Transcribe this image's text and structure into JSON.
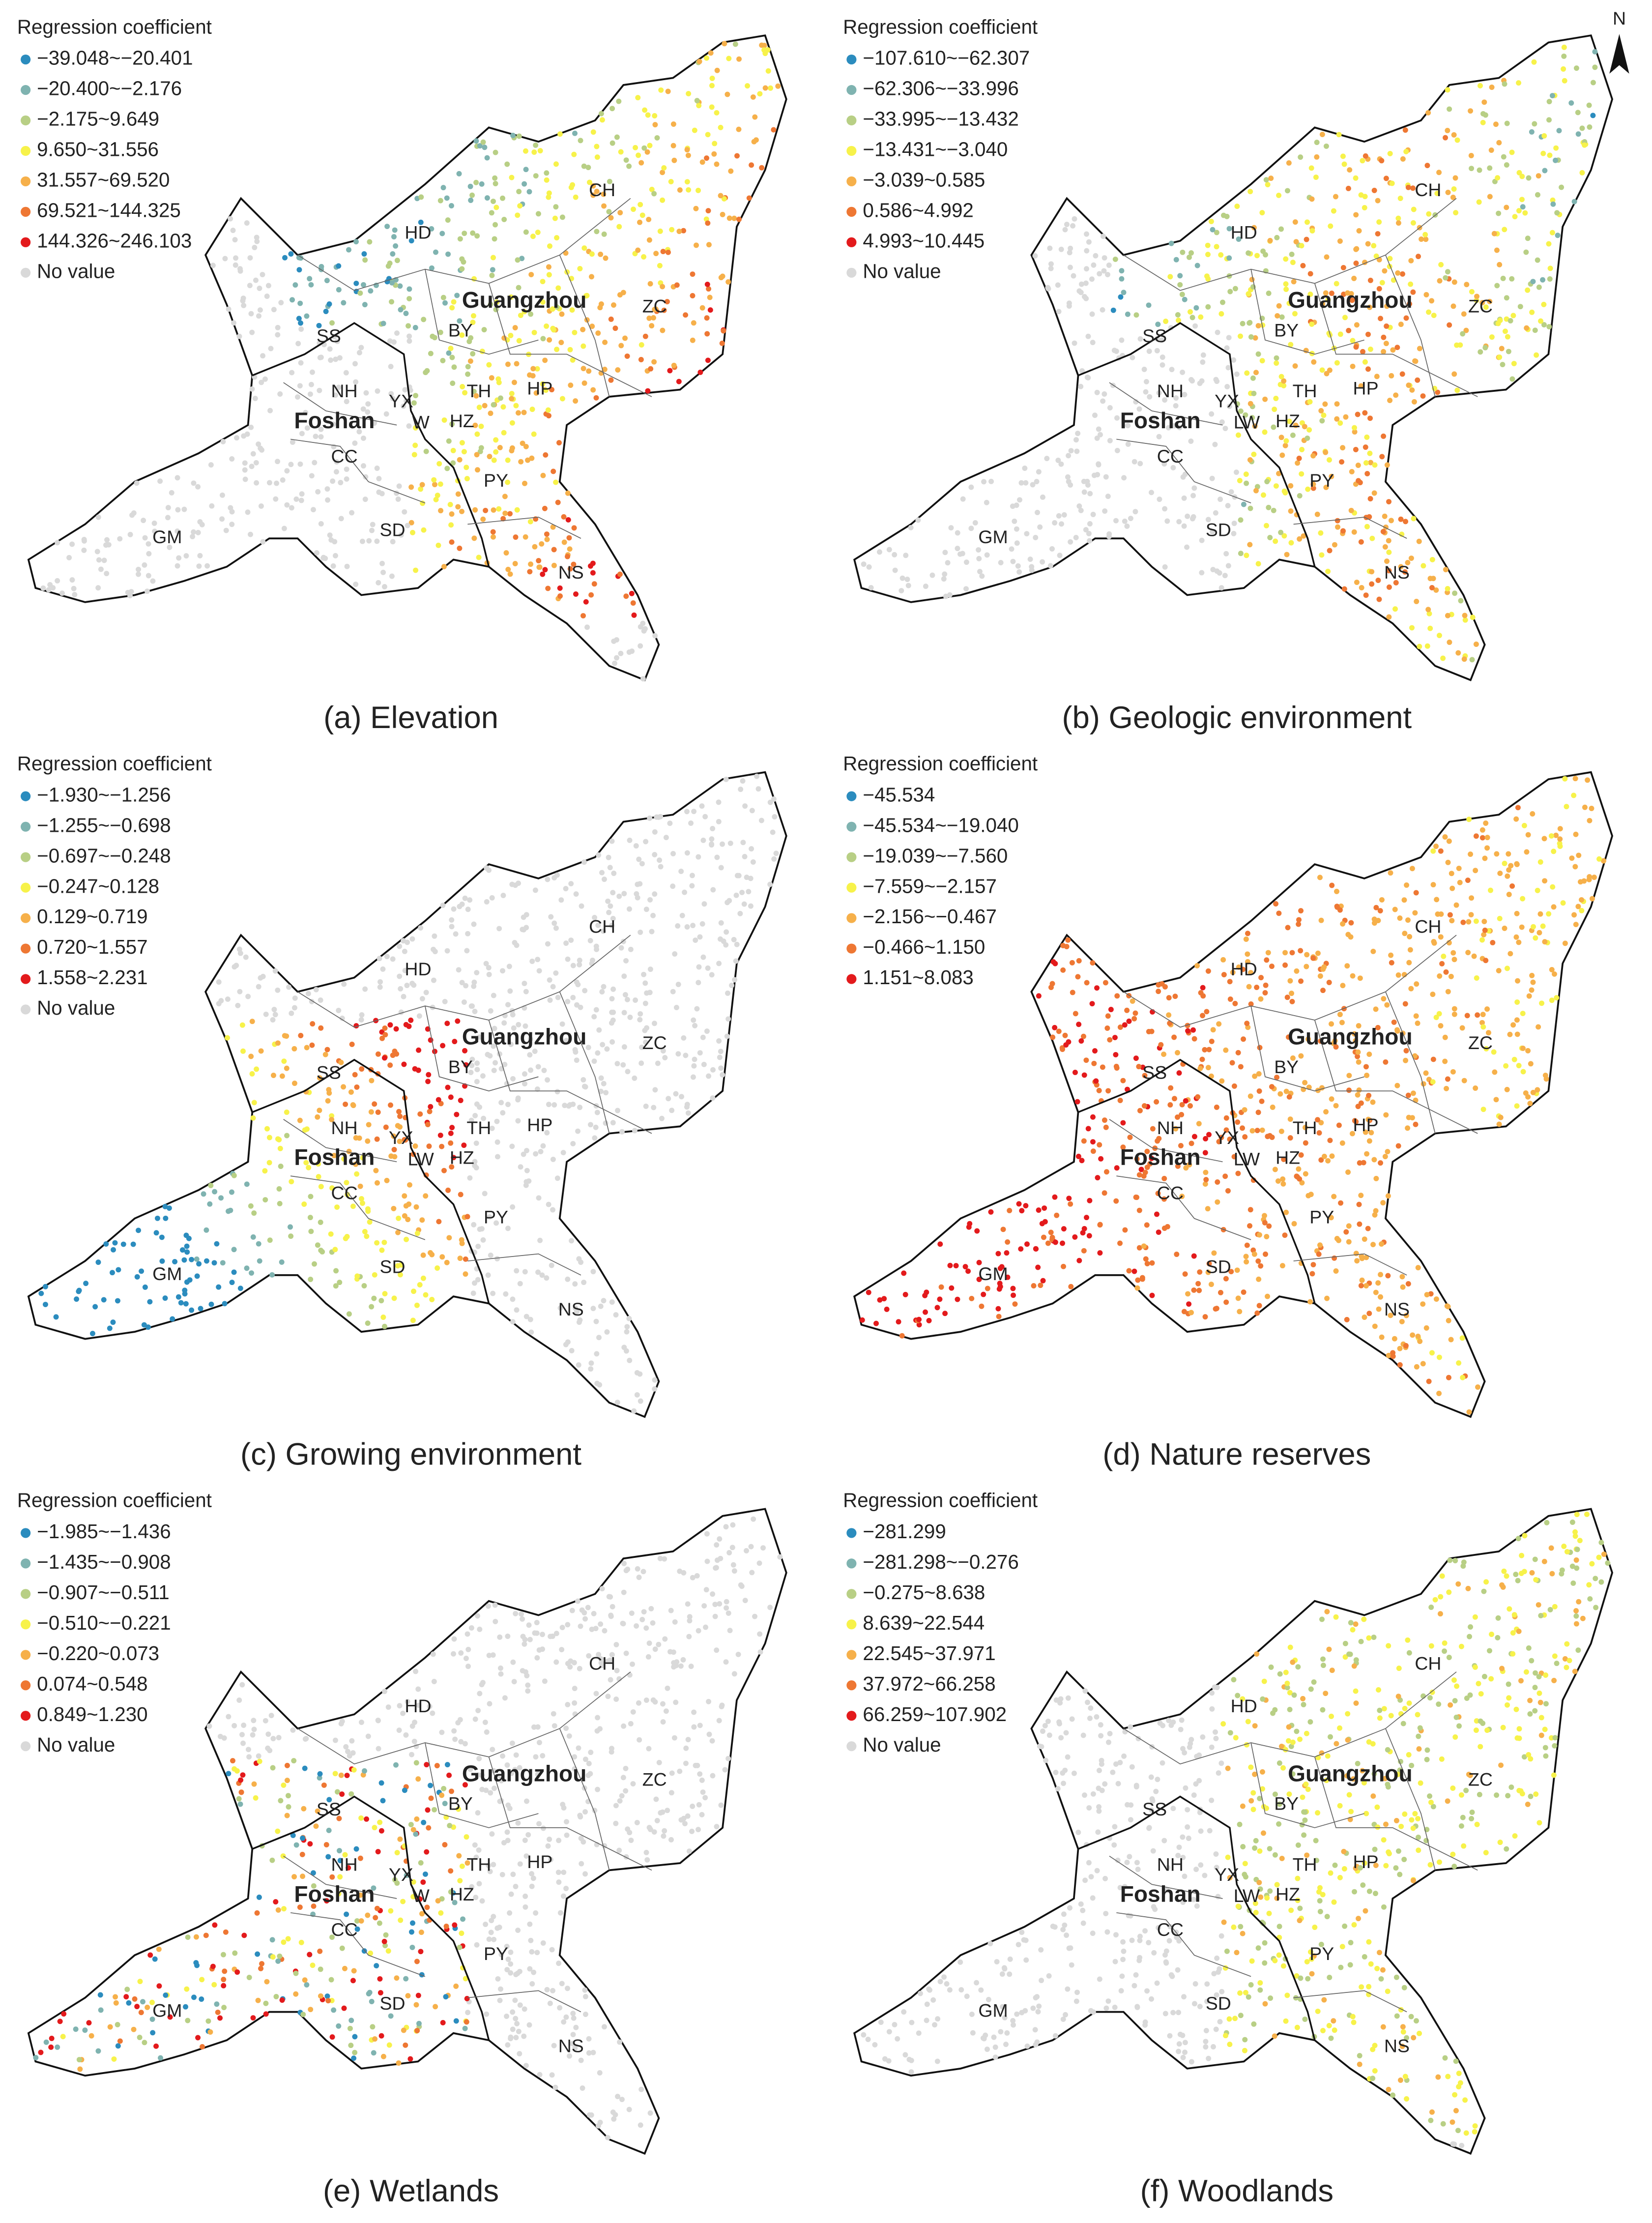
{
  "panels": [
    {
      "legend_title": "Regression coefficient",
      "caption": "(a) Elevation",
      "legend": [
        {
          "label": "−39.048~−20.401",
          "color": "#2b8cbe"
        },
        {
          "label": "−20.400~−2.176",
          "color": "#7fb3b0"
        },
        {
          "label": "−2.175~9.649",
          "color": "#b8cf85"
        },
        {
          "label": "9.650~31.556",
          "color": "#f7f24a"
        },
        {
          "label": "31.557~69.520",
          "color": "#f6b04a"
        },
        {
          "label": "69.521~144.325",
          "color": "#ee7733"
        },
        {
          "label": "144.326~246.103",
          "color": "#e31a1c"
        },
        {
          "label": "No value",
          "color": "#d9d9d9"
        }
      ],
      "districts": [
        "CH",
        "HD",
        "Guangzhou",
        "ZC",
        "BY",
        "SS",
        "NH",
        "YX",
        "TH",
        "HP",
        "Foshan",
        "W",
        "HZ",
        "CC",
        "PY",
        "GM",
        "SD",
        "NS"
      ]
    },
    {
      "legend_title": "Regression coefficient",
      "caption": "(b) Geologic environment",
      "north": "N",
      "legend": [
        {
          "label": "−107.610~−62.307",
          "color": "#2b8cbe"
        },
        {
          "label": "−62.306~−33.996",
          "color": "#7fb3b0"
        },
        {
          "label": "−33.995~−13.432",
          "color": "#b8cf85"
        },
        {
          "label": "−13.431~−3.040",
          "color": "#f7f24a"
        },
        {
          "label": "−3.039~0.585",
          "color": "#f6b04a"
        },
        {
          "label": "0.586~4.992",
          "color": "#ee7733"
        },
        {
          "label": "4.993~10.445",
          "color": "#e31a1c"
        },
        {
          "label": "No value",
          "color": "#d9d9d9"
        }
      ],
      "districts": [
        "CH",
        "HD",
        "Guangzhou",
        "ZC",
        "BY",
        "SS",
        "NH",
        "YX",
        "TH",
        "HP",
        "Foshan",
        "LW",
        "HZ",
        "CC",
        "PY",
        "GM",
        "SD",
        "NS"
      ]
    },
    {
      "legend_title": "Regression coefficient",
      "caption": "(c) Growing environment",
      "legend": [
        {
          "label": "−1.930~−1.256",
          "color": "#2b8cbe"
        },
        {
          "label": "−1.255~−0.698",
          "color": "#7fb3b0"
        },
        {
          "label": "−0.697~−0.248",
          "color": "#b8cf85"
        },
        {
          "label": "−0.247~0.128",
          "color": "#f7f24a"
        },
        {
          "label": "0.129~0.719",
          "color": "#f6b04a"
        },
        {
          "label": "0.720~1.557",
          "color": "#ee7733"
        },
        {
          "label": "1.558~2.231",
          "color": "#e31a1c"
        },
        {
          "label": "No value",
          "color": "#d9d9d9"
        }
      ],
      "districts": [
        "CH",
        "HD",
        "Guangzhou",
        "ZC",
        "BY",
        "SS",
        "NH",
        "YX",
        "TH",
        "HP",
        "Foshan",
        "LW",
        "HZ",
        "CC",
        "PY",
        "GM",
        "SD",
        "NS"
      ]
    },
    {
      "legend_title": "Regression coefficient",
      "caption": "(d) Nature reserves",
      "legend": [
        {
          "label": "−45.534",
          "color": "#2b8cbe"
        },
        {
          "label": "−45.534~−19.040",
          "color": "#7fb3b0"
        },
        {
          "label": "−19.039~−7.560",
          "color": "#b8cf85"
        },
        {
          "label": "−7.559~−2.157",
          "color": "#f7f24a"
        },
        {
          "label": "−2.156~−0.467",
          "color": "#f6b04a"
        },
        {
          "label": "−0.466~1.150",
          "color": "#ee7733"
        },
        {
          "label": "1.151~8.083",
          "color": "#e31a1c"
        }
      ],
      "districts": [
        "CH",
        "HD",
        "Guangzhou",
        "ZC",
        "BY",
        "SS",
        "NH",
        "YX",
        "TH",
        "HP",
        "Foshan",
        "LW",
        "HZ",
        "CC",
        "PY",
        "GM",
        "SD",
        "NS"
      ]
    },
    {
      "legend_title": "Regression coefficient",
      "caption": "(e) Wetlands",
      "legend": [
        {
          "label": "−1.985~−1.436",
          "color": "#2b8cbe"
        },
        {
          "label": "−1.435~−0.908",
          "color": "#7fb3b0"
        },
        {
          "label": "−0.907~−0.511",
          "color": "#b8cf85"
        },
        {
          "label": "−0.510~−0.221",
          "color": "#f7f24a"
        },
        {
          "label": "−0.220~0.073",
          "color": "#f6b04a"
        },
        {
          "label": "0.074~0.548",
          "color": "#ee7733"
        },
        {
          "label": "0.849~1.230",
          "color": "#e31a1c"
        },
        {
          "label": "No value",
          "color": "#d9d9d9"
        }
      ],
      "districts": [
        "CH",
        "HD",
        "Guangzhou",
        "ZC",
        "BY",
        "SS",
        "NH",
        "YX",
        "TH",
        "HP",
        "Foshan",
        "W",
        "HZ",
        "CC",
        "PY",
        "GM",
        "SD",
        "NS"
      ]
    },
    {
      "legend_title": "Regression coefficient",
      "caption": "(f) Woodlands",
      "legend": [
        {
          "label": "−281.299",
          "color": "#2b8cbe"
        },
        {
          "label": "−281.298~−0.276",
          "color": "#7fb3b0"
        },
        {
          "label": "−0.275~8.638",
          "color": "#b8cf85"
        },
        {
          "label": "8.639~22.544",
          "color": "#f7f24a"
        },
        {
          "label": "22.545~37.971",
          "color": "#f6b04a"
        },
        {
          "label": "37.972~66.258",
          "color": "#ee7733"
        },
        {
          "label": "66.259~107.902",
          "color": "#e31a1c"
        },
        {
          "label": "No value",
          "color": "#d9d9d9"
        }
      ],
      "districts": [
        "CH",
        "HD",
        "Guangzhou",
        "ZC",
        "BY",
        "SS",
        "NH",
        "YX",
        "TH",
        "HP",
        "Foshan",
        "LW",
        "HZ",
        "CC",
        "PY",
        "GM",
        "SD",
        "NS"
      ]
    }
  ]
}
